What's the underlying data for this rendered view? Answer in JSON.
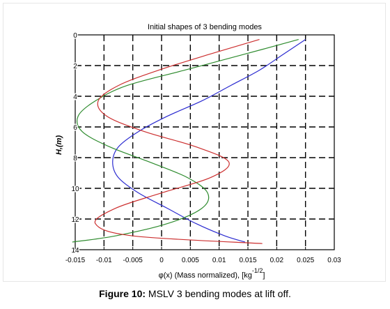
{
  "chart_data": {
    "type": "line",
    "title": "Initial shapes of 3 bending modes",
    "xlabel": "φ(x) (Mass normalized),  [kg",
    "xlabel_sup": "-1/2",
    "xlabel_suffix": "]",
    "ylabel": "H,(m)",
    "xlim": [
      -0.015,
      0.03
    ],
    "ylim": [
      0,
      14
    ],
    "y_reversed": true,
    "grid": true,
    "x_ticks": [
      -0.015,
      -0.01,
      -0.005,
      0,
      0.005,
      0.01,
      0.015,
      0.02,
      0.025,
      0.03
    ],
    "x_tick_labels": [
      "-0.015",
      "-0.01",
      "-0.005",
      "0",
      "0.005",
      "0.01",
      "0.015",
      "0.02",
      "0.025",
      "0.03"
    ],
    "y_ticks": [
      0,
      2,
      4,
      6,
      8,
      10,
      12,
      14
    ],
    "y_tick_labels": [
      "0",
      "2",
      "4",
      "6",
      "8",
      "10",
      "12",
      "14"
    ],
    "series": [
      {
        "color": "#2b2bd0",
        "x": [
          0.025,
          0.021,
          0.017,
          0.012,
          0.007,
          0.001,
          -0.004,
          -0.0075,
          -0.0085,
          -0.0075,
          -0.004,
          0.001,
          0.006,
          0.011,
          0.0145
        ],
        "y": [
          0.3,
          1.3,
          2.3,
          3.3,
          4.3,
          5.3,
          6.3,
          7.3,
          8.3,
          9.3,
          10.3,
          11.3,
          12.3,
          13.1,
          13.5
        ]
      },
      {
        "color": "#2e8b2e",
        "x": [
          0.0238,
          0.014,
          0.004,
          -0.006,
          -0.0115,
          -0.0145,
          -0.0138,
          -0.009,
          -0.002,
          0.0045,
          0.008,
          0.007,
          0.001,
          -0.008,
          -0.0155
        ],
        "y": [
          0.3,
          1.3,
          2.3,
          3.3,
          4.3,
          5.3,
          6.3,
          7.3,
          8.3,
          9.3,
          10.3,
          11.3,
          12.3,
          13.1,
          13.5
        ]
      },
      {
        "color": "#cc2f2f",
        "x": [
          0.017,
          0.008,
          -0.0005,
          -0.0075,
          -0.011,
          -0.0095,
          -0.003,
          0.006,
          0.0117,
          0.0085,
          0.0,
          -0.008,
          -0.0115,
          -0.005,
          0.0175
        ],
        "y": [
          0.3,
          1.3,
          2.3,
          3.3,
          4.3,
          5.3,
          6.3,
          7.3,
          8.3,
          9.3,
          10.3,
          11.3,
          12.3,
          13.1,
          13.6
        ]
      }
    ]
  },
  "caption": {
    "label": "Figure 10:",
    "text": " MSLV 3 bending modes at lift off."
  }
}
